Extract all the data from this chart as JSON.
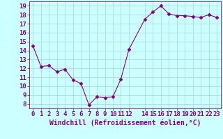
{
  "x": [
    0,
    1,
    2,
    3,
    4,
    5,
    6,
    7,
    8,
    9,
    10,
    11,
    12,
    14,
    15,
    16,
    17,
    18,
    19,
    20,
    21,
    22,
    23
  ],
  "y": [
    14.5,
    12.2,
    12.3,
    11.6,
    11.9,
    10.7,
    10.3,
    7.9,
    8.8,
    8.7,
    8.8,
    10.8,
    14.1,
    17.5,
    18.3,
    19.0,
    18.1,
    17.9,
    17.9,
    17.8,
    17.7,
    18.0,
    17.7
  ],
  "line_color": "#800080",
  "marker": "D",
  "marker_size": 2.5,
  "bg_color": "#ccffff",
  "grid_color": "#aadddd",
  "xlabel": "Windchill (Refroidissement éolien,°C)",
  "xlabel_fontsize": 7,
  "tick_fontsize": 6.5,
  "ylim": [
    7.5,
    19.5
  ],
  "xlim": [
    -0.5,
    23.5
  ],
  "yticks": [
    8,
    9,
    10,
    11,
    12,
    13,
    14,
    15,
    16,
    17,
    18,
    19
  ],
  "xticks": [
    0,
    1,
    2,
    3,
    4,
    5,
    6,
    7,
    8,
    9,
    10,
    11,
    12,
    14,
    15,
    16,
    17,
    18,
    19,
    20,
    21,
    22,
    23
  ],
  "xtick_labels": [
    "0",
    "1",
    "2",
    "3",
    "4",
    "5",
    "6",
    "7",
    "8",
    "9",
    "10",
    "11",
    "12",
    "14",
    "15",
    "16",
    "17",
    "18",
    "19",
    "20",
    "21",
    "22",
    "23"
  ]
}
